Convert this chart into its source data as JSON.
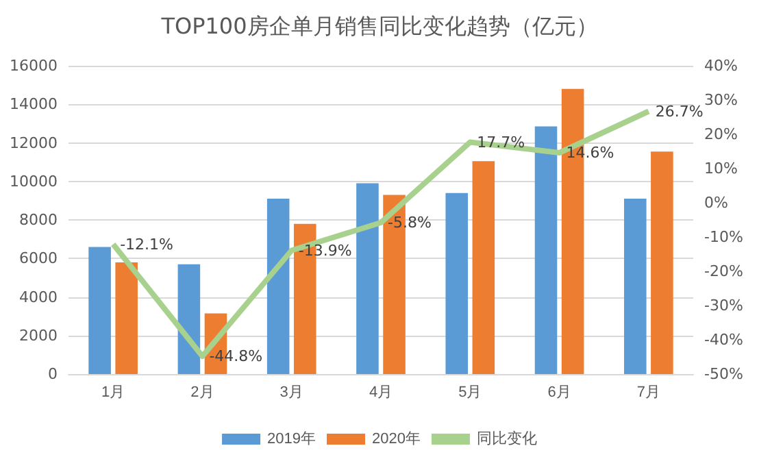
{
  "chart_data": {
    "type": "bar",
    "title": "TOP100房企单月销售同比变化趋势（亿元）",
    "categories": [
      "1月",
      "2月",
      "3月",
      "4月",
      "5月",
      "6月",
      "7月"
    ],
    "series": [
      {
        "name": "2019年",
        "color": "#5b9bd5",
        "values": [
          6600,
          5700,
          9100,
          9900,
          9400,
          12850,
          9100
        ]
      },
      {
        "name": "2020年",
        "color": "#ed7d31",
        "values": [
          5800,
          3150,
          7800,
          9300,
          11050,
          14800,
          11550
        ]
      },
      {
        "name": "同比变化",
        "type": "line",
        "axis": "y2",
        "color": "#a9d18e",
        "marker": "none",
        "values": [
          -12.1,
          -44.8,
          -13.9,
          -5.8,
          17.7,
          14.6,
          26.7
        ],
        "value_labels": [
          "-12.1%",
          "-44.8%",
          "-13.9%",
          "-5.8%",
          "17.7%",
          "14.6%",
          "26.7%"
        ]
      }
    ],
    "ylim": [
      0,
      16000
    ],
    "yticks": [
      0,
      2000,
      4000,
      6000,
      8000,
      10000,
      12000,
      14000,
      16000
    ],
    "y2lim": [
      -50,
      40
    ],
    "y2ticks": [
      {
        "value": -50,
        "label": "-50%"
      },
      {
        "value": -40,
        "label": "-40%"
      },
      {
        "value": -30,
        "label": "-30%"
      },
      {
        "value": -20,
        "label": "-20%"
      },
      {
        "value": -10,
        "label": "-10%"
      },
      {
        "value": 0,
        "label": "0%"
      },
      {
        "value": 10,
        "label": "10%"
      },
      {
        "value": 20,
        "label": "20%"
      },
      {
        "value": 30,
        "label": "30%"
      },
      {
        "value": 40,
        "label": "40%"
      }
    ],
    "grid": "y",
    "legend": "bottom"
  }
}
